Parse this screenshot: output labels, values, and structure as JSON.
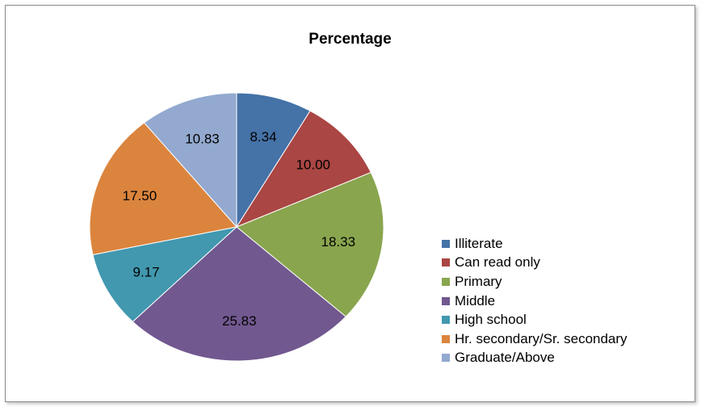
{
  "chart_data": {
    "type": "pie",
    "title": "Percentage",
    "categories": [
      "Illiterate",
      "Can read only",
      "Primary",
      "Middle",
      "High school",
      "Hr. secondary/Sr. secondary",
      "Graduate/Above"
    ],
    "values": [
      8.34,
      10.0,
      18.33,
      25.83,
      9.17,
      17.5,
      10.83
    ],
    "value_labels": [
      "8.34",
      "10.00",
      "18.33",
      "25.83",
      "9.17",
      "17.50",
      "10.83"
    ],
    "colors": [
      "#4572A7",
      "#AA4643",
      "#89A54E",
      "#71588F",
      "#4198AF",
      "#DB843D",
      "#93A9CF"
    ],
    "legend_position": "right",
    "start_angle_deg": 0,
    "direction": "clockwise"
  }
}
